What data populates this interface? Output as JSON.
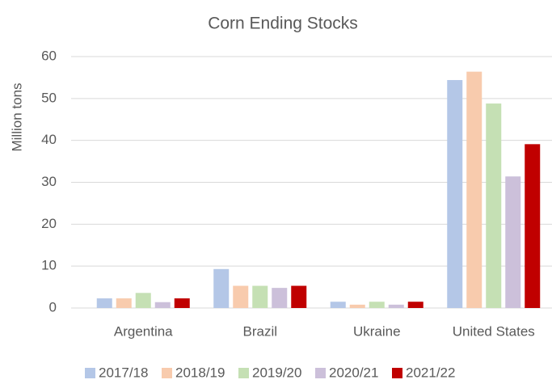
{
  "chart_data": {
    "type": "bar",
    "title": "Corn Ending Stocks",
    "y_label": "Million tons",
    "categories": [
      "Argentina",
      "Brazil",
      "Ukraine",
      "United States"
    ],
    "series": [
      {
        "name": "2017/18",
        "color": "#b4c7e7",
        "values": [
          2.3,
          9.3,
          1.5,
          54.4
        ]
      },
      {
        "name": "2018/19",
        "color": "#f8cbad",
        "values": [
          2.3,
          5.3,
          0.8,
          56.4
        ]
      },
      {
        "name": "2019/20",
        "color": "#c5e0b4",
        "values": [
          3.6,
          5.3,
          1.5,
          48.8
        ]
      },
      {
        "name": "2020/21",
        "color": "#ccc0da",
        "values": [
          1.4,
          4.8,
          0.8,
          31.4
        ]
      },
      {
        "name": "2021/22",
        "color": "#c00000",
        "values": [
          2.3,
          5.3,
          1.5,
          39.1
        ]
      }
    ],
    "ylim": [
      0,
      60
    ],
    "yticks": [
      0,
      10,
      20,
      30,
      40,
      50,
      60
    ],
    "grid": true,
    "legend": "bottom"
  }
}
